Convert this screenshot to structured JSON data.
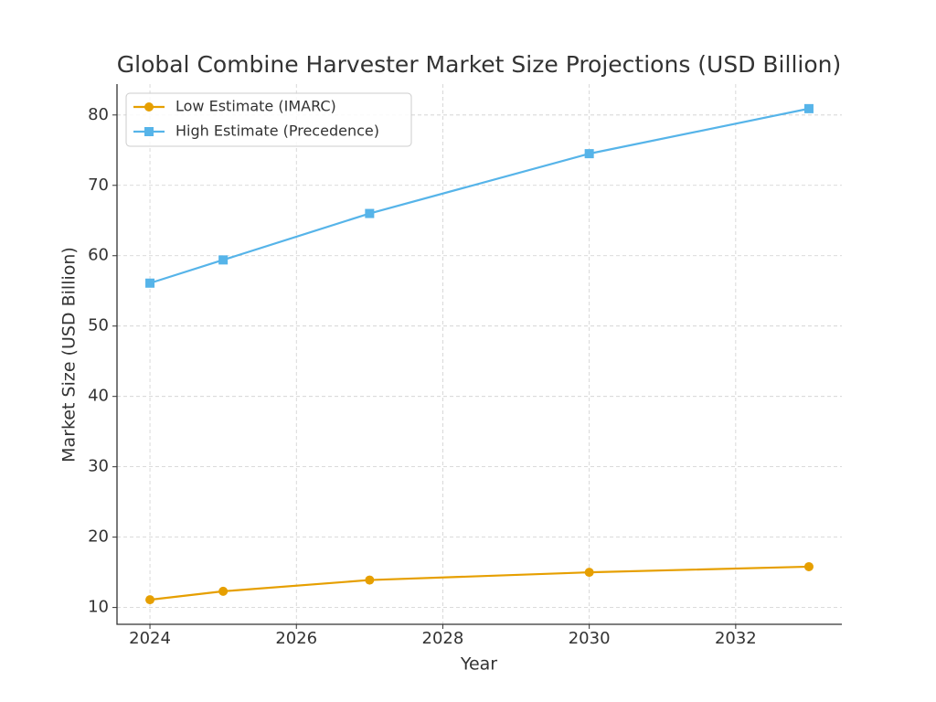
{
  "chart_data": {
    "type": "line",
    "title": "Global Combine Harvester Market Size Projections (USD Billion)",
    "x_label": "Year",
    "y_label": "Market Size (USD Billion)",
    "x": [
      2024,
      2025,
      2027,
      2030,
      2033
    ],
    "series": [
      {
        "name": "Low Estimate (IMARC)",
        "color": "#e69f00",
        "marker": "circle",
        "values": [
          11.1,
          12.3,
          13.9,
          15.0,
          15.8
        ]
      },
      {
        "name": "High Estimate (Precedence)",
        "color": "#56b4e9",
        "marker": "square",
        "values": [
          56.1,
          59.4,
          66.0,
          74.5,
          80.9
        ]
      }
    ],
    "xlim": [
      2023.55,
      2033.45
    ],
    "xticks": [
      2024,
      2026,
      2028,
      2030,
      2032
    ],
    "ylim": [
      7.61,
      84.39
    ],
    "yticks": [
      10,
      20,
      30,
      40,
      50,
      60,
      70,
      80
    ],
    "grid": true,
    "legend": "upper-left"
  }
}
